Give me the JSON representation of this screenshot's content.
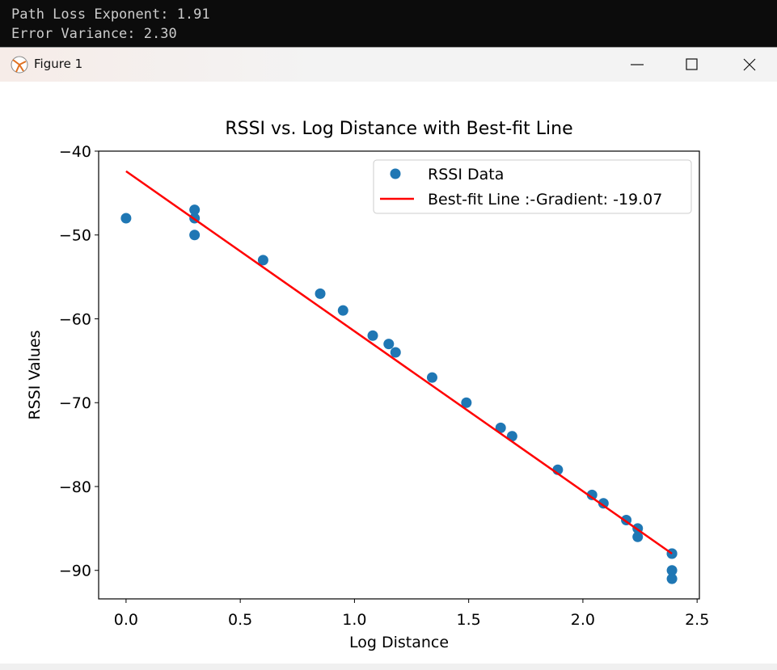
{
  "terminal": {
    "lines": [
      "Path Loss Exponent: 1.91",
      "Error Variance: 2.30"
    ]
  },
  "window": {
    "title": "Figure 1"
  },
  "chart_data": {
    "type": "scatter",
    "title": "RSSI vs. Log Distance with Best-fit Line",
    "x_label": "Log Distance",
    "y_label": "RSSI Values",
    "xlim": [
      -0.12,
      2.51
    ],
    "ylim": [
      -93.4,
      -40
    ],
    "xticks": [
      {
        "value": 0,
        "label": "0.0"
      },
      0.5,
      {
        "value": 1,
        "label": "1.0"
      },
      1.5,
      {
        "value": 2,
        "label": "2.0"
      },
      2.5
    ],
    "yticks": [
      {
        "value": -40,
        "label": "−40"
      },
      {
        "value": -50,
        "label": "−50"
      },
      {
        "value": -60,
        "label": "−60"
      },
      {
        "value": -70,
        "label": "−70"
      },
      {
        "value": -80,
        "label": "−80"
      },
      {
        "value": -90,
        "label": "−90"
      }
    ],
    "legend": "upper right",
    "grid": false,
    "series": [
      {
        "name": "RSSI Data",
        "color": "#1f77b4",
        "kind": "scatter",
        "x": [
          0,
          0.3,
          0.3,
          0.3,
          0.6,
          0.85,
          0.95,
          1.08,
          1.15,
          1.18,
          1.34,
          1.49,
          1.64,
          1.69,
          1.89,
          2.04,
          2.09,
          2.19,
          2.24,
          2.24,
          2.39,
          2.39,
          2.39,
          2.39
        ],
        "values": [
          -48,
          -47,
          -48,
          -50,
          -53,
          -57,
          -59,
          -62,
          -63,
          -64,
          -67,
          -70,
          -73,
          -74,
          -78,
          -81,
          -82,
          -84,
          -85,
          -86,
          -88,
          -88,
          -90,
          -91
        ]
      },
      {
        "name": "Best-fit Line :-Gradient: -19.07",
        "color": "#ff0000",
        "kind": "line",
        "x": [
          0,
          2.39
        ],
        "values": [
          -42.4,
          -88.0
        ]
      }
    ]
  }
}
